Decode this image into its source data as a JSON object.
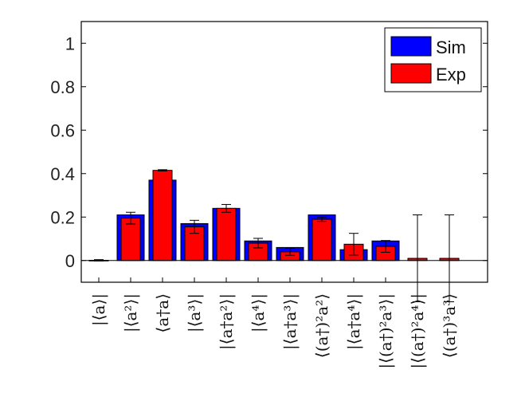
{
  "chart_data": {
    "type": "bar",
    "categories": [
      "|⟨a⟩|",
      "|⟨a²⟩|",
      "⟨a†a⟩",
      "|⟨a³⟩|",
      "|⟨a†a²⟩|",
      "|⟨a⁴⟩|",
      "|⟨a†a³⟩|",
      "⟨(a†)²a²⟩",
      "|⟨a†a⁴⟩|",
      "|⟨(a†)²a³⟩|",
      "|⟨(a†)²a⁴⟩|",
      "⟨(a†)³a³⟩"
    ],
    "series": [
      {
        "name": "Sim",
        "color": "#0000ff",
        "values": [
          0,
          0.21,
          0.37,
          0.17,
          0.24,
          0.09,
          0.06,
          0.21,
          0.05,
          0.09,
          0,
          0
        ]
      },
      {
        "name": "Exp",
        "color": "#ff0000",
        "values": [
          0.001,
          0.195,
          0.415,
          0.155,
          0.24,
          0.08,
          0.04,
          0.19,
          0.075,
          0.065,
          0.01,
          0.01
        ],
        "errors": [
          0.003,
          0.027,
          0.003,
          0.03,
          0.018,
          0.022,
          0.016,
          0.01,
          0.05,
          0.027,
          0.2,
          0.2
        ]
      }
    ],
    "yticks": [
      "0",
      "0.2",
      "0.4",
      "0.6",
      "0.8",
      "1"
    ],
    "ylim": [
      -0.1,
      1.1
    ],
    "legend_position": "top-right",
    "grid": false
  }
}
